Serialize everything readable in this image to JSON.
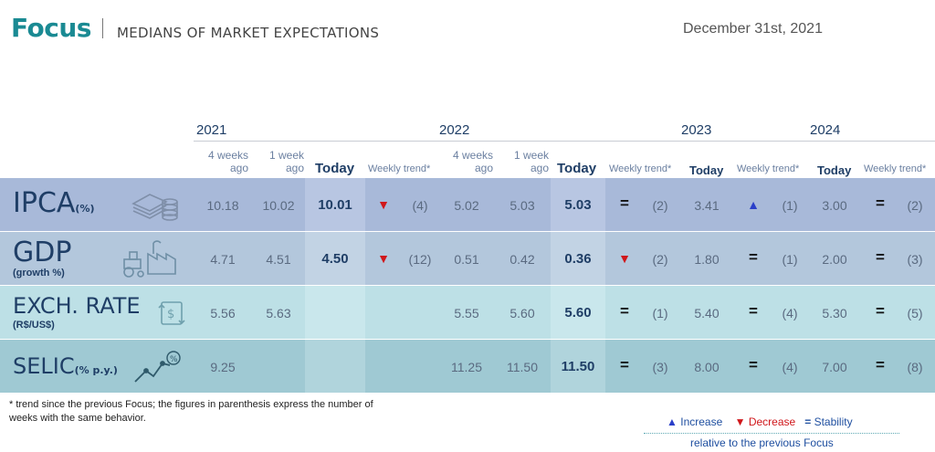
{
  "header": {
    "title": "Focus",
    "subtitle": "MEDIANS OF MARKET EXPECTATIONS",
    "date": "December 31st, 2021"
  },
  "years": [
    "2021",
    "2022",
    "2023",
    "2024"
  ],
  "column_headers": {
    "weeks4": "4 weeks ago",
    "week1": "1 week ago",
    "today": "Today",
    "trend": "Weekly trend*"
  },
  "rows": [
    {
      "label": "IPCA",
      "unit": "(%)",
      "y2021": {
        "w4": "10.18",
        "w1": "10.02",
        "today": "10.01",
        "trend": "down",
        "count": "(4)"
      },
      "y2022": {
        "w4": "5.02",
        "w1": "5.03",
        "today": "5.03",
        "trend": "equal",
        "count": "(2)"
      },
      "y2023": {
        "today": "3.41",
        "trend": "up",
        "count": "(1)"
      },
      "y2024": {
        "today": "3.00",
        "trend": "equal",
        "count": "(2)"
      }
    },
    {
      "label": "GDP",
      "unit": "(growth %)",
      "y2021": {
        "w4": "4.71",
        "w1": "4.51",
        "today": "4.50",
        "trend": "down",
        "count": "(12)"
      },
      "y2022": {
        "w4": "0.51",
        "w1": "0.42",
        "today": "0.36",
        "trend": "down",
        "count": "(2)"
      },
      "y2023": {
        "today": "1.80",
        "trend": "equal",
        "count": "(1)"
      },
      "y2024": {
        "today": "2.00",
        "trend": "equal",
        "count": "(3)"
      }
    },
    {
      "label": "EXCH. RATE",
      "unit": "(R$/US$)",
      "y2021": {
        "w4": "5.56",
        "w1": "5.63",
        "today": "",
        "trend": "",
        "count": ""
      },
      "y2022": {
        "w4": "5.55",
        "w1": "5.60",
        "today": "5.60",
        "trend": "equal",
        "count": "(1)"
      },
      "y2023": {
        "today": "5.40",
        "trend": "equal",
        "count": "(4)"
      },
      "y2024": {
        "today": "5.30",
        "trend": "equal",
        "count": "(5)"
      }
    },
    {
      "label": "SELIC",
      "unit": "(% p.y.)",
      "y2021": {
        "w4": "9.25",
        "w1": "",
        "today": "",
        "trend": "",
        "count": ""
      },
      "y2022": {
        "w4": "11.25",
        "w1": "11.50",
        "today": "11.50",
        "trend": "equal",
        "count": "(3)"
      },
      "y2023": {
        "today": "8.00",
        "trend": "equal",
        "count": "(4)"
      },
      "y2024": {
        "today": "7.00",
        "trend": "equal",
        "count": "(8)"
      }
    }
  ],
  "symbols": {
    "up": "▲",
    "down": "▼",
    "equal": "="
  },
  "footnote": "* trend since the previous Focus; the figures in parenthesis express the number of weeks with the same behavior.",
  "legend": {
    "increase": "Increase",
    "decrease": "Decrease",
    "stability": "Stability",
    "note": "relative to the previous Focus"
  },
  "colors": {
    "brand": "#1a8a93",
    "increase": "#2a3fc9",
    "decrease": "#d0171b",
    "row_ipca": "#a8b9d9",
    "row_gdp": "#b3c7dc",
    "row_exch": "#bde0e6",
    "row_selic": "#9fc9d3"
  },
  "icons": [
    "money-stack-icon",
    "tractor-factory-icon",
    "currency-exchange-icon",
    "rising-line-chart-icon"
  ]
}
